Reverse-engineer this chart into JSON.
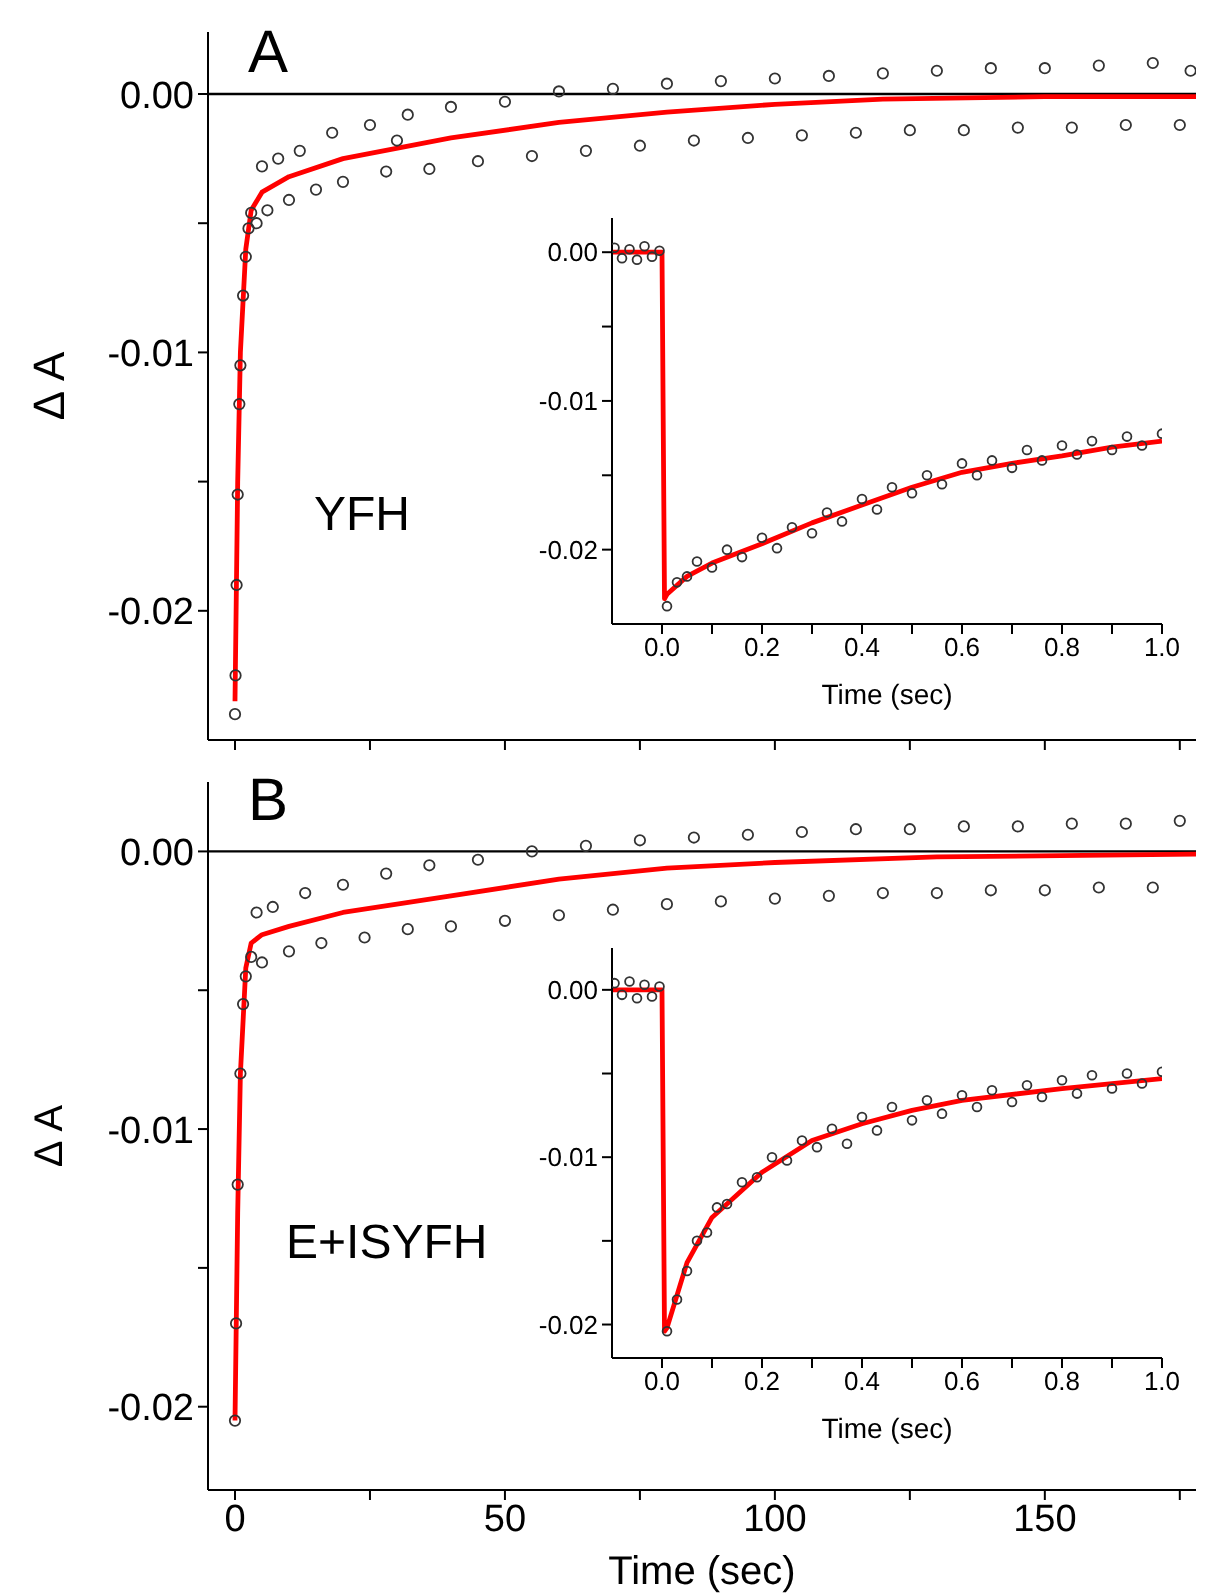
{
  "chart_data": [
    {
      "type": "scatter",
      "ylabel": "Δ A",
      "annotations": [
        "A",
        "YFH"
      ],
      "marker": "circle",
      "tick_labels": "y",
      "xlim": [
        -5,
        178
      ],
      "xticks": [
        0,
        {
          "value": 25,
          "label": null
        },
        50,
        {
          "value": 75,
          "label": null
        },
        100,
        {
          "value": 125,
          "label": null
        },
        150,
        {
          "value": 175,
          "label": null
        }
      ],
      "ylim": [
        -0.025,
        0.0024
      ],
      "yticks": [
        {
          "value": 0,
          "label": "0.00"
        },
        {
          "value": -0.005,
          "label": null
        },
        {
          "value": -0.01,
          "label": "-0.01"
        },
        {
          "value": -0.015,
          "label": null
        },
        {
          "value": -0.02,
          "label": "-0.02"
        }
      ],
      "ref_lines": [
        {
          "axis": "y",
          "value": 0
        }
      ],
      "series": [
        {
          "type": "scatter",
          "color": "#333333",
          "x": [
            0,
            0.1,
            0.3,
            0.5,
            0.8,
            1,
            1.5,
            2,
            2.5,
            3,
            4,
            5,
            6,
            8,
            10,
            12,
            15,
            18,
            20,
            25,
            28,
            30,
            32,
            36,
            40,
            45,
            50,
            55,
            60,
            65,
            70,
            75,
            80,
            85,
            90,
            95,
            100,
            105,
            110,
            115,
            120,
            125,
            130,
            135,
            140,
            145,
            150,
            155,
            160,
            165,
            170,
            175,
            177
          ],
          "values": [
            -0.024,
            -0.0225,
            -0.019,
            -0.0155,
            -0.012,
            -0.0105,
            -0.0078,
            -0.0063,
            -0.0052,
            -0.0046,
            -0.005,
            -0.0028,
            -0.0045,
            -0.0025,
            -0.0041,
            -0.0022,
            -0.0037,
            -0.0015,
            -0.0034,
            -0.0012,
            -0.003,
            -0.0018,
            -0.0008,
            -0.0029,
            -0.0005,
            -0.0026,
            -0.0003,
            -0.0024,
            0.0001,
            -0.0022,
            0.0002,
            -0.002,
            0.0004,
            -0.0018,
            0.0005,
            -0.0017,
            0.0006,
            -0.0016,
            0.0007,
            -0.0015,
            0.0008,
            -0.0014,
            0.0009,
            -0.0014,
            0.001,
            -0.0013,
            0.001,
            -0.0013,
            0.0011,
            -0.0012,
            0.0012,
            -0.0012,
            0.0009
          ]
        },
        {
          "type": "line",
          "color": "#ff0000",
          "marker": "none",
          "x": [
            0,
            0.5,
            1,
            2,
            3,
            5,
            10,
            20,
            40,
            60,
            80,
            100,
            120,
            150,
            178
          ],
          "values": [
            -0.0235,
            -0.015,
            -0.01,
            -0.006,
            -0.0045,
            -0.0038,
            -0.0032,
            -0.0025,
            -0.0017,
            -0.0011,
            -0.0007,
            -0.0004,
            -0.0002,
            -0.0001,
            -0.0001
          ]
        }
      ]
    },
    {
      "type": "scatter",
      "xlabel": "Time (sec)",
      "marker": "circle",
      "xlim": [
        -0.1,
        1.0
      ],
      "xticks": [
        {
          "value": 0,
          "label": "0.0"
        },
        {
          "value": 0.1,
          "label": null
        },
        {
          "value": 0.2,
          "label": "0.2"
        },
        {
          "value": 0.3,
          "label": null
        },
        {
          "value": 0.4,
          "label": "0.4"
        },
        {
          "value": 0.5,
          "label": null
        },
        {
          "value": 0.6,
          "label": "0.6"
        },
        {
          "value": 0.7,
          "label": null
        },
        {
          "value": 0.8,
          "label": "0.8"
        },
        {
          "value": 0.9,
          "label": null
        },
        {
          "value": 1.0,
          "label": "1.0"
        }
      ],
      "ylim": [
        -0.025,
        0.0023
      ],
      "yticks": [
        {
          "value": 0,
          "label": "0.00"
        },
        {
          "value": -0.005,
          "label": null
        },
        {
          "value": -0.01,
          "label": "-0.01"
        },
        {
          "value": -0.015,
          "label": null
        },
        {
          "value": -0.02,
          "label": "-0.02"
        }
      ],
      "series": [
        {
          "type": "scatter",
          "color": "#333333",
          "x": [
            -0.095,
            -0.08,
            -0.065,
            -0.05,
            -0.035,
            -0.02,
            -0.005,
            0.01,
            0.03,
            0.05,
            0.07,
            0.1,
            0.13,
            0.16,
            0.2,
            0.23,
            0.26,
            0.3,
            0.33,
            0.36,
            0.4,
            0.43,
            0.46,
            0.5,
            0.53,
            0.56,
            0.6,
            0.63,
            0.66,
            0.7,
            0.73,
            0.76,
            0.8,
            0.83,
            0.86,
            0.9,
            0.93,
            0.96,
            1.0
          ],
          "values": [
            0.0003,
            -0.0004,
            0.0002,
            -0.0005,
            0.0004,
            -0.0003,
            0.0001,
            -0.0238,
            -0.0222,
            -0.0218,
            -0.0208,
            -0.0212,
            -0.02,
            -0.0205,
            -0.0192,
            -0.0199,
            -0.0185,
            -0.0189,
            -0.0175,
            -0.0181,
            -0.0166,
            -0.0173,
            -0.0158,
            -0.0162,
            -0.015,
            -0.0156,
            -0.0142,
            -0.015,
            -0.014,
            -0.0145,
            -0.0133,
            -0.014,
            -0.013,
            -0.0136,
            -0.0127,
            -0.0133,
            -0.0124,
            -0.013,
            -0.0122
          ]
        },
        {
          "type": "line",
          "color": "#ff0000",
          "marker": "none",
          "x": [
            -0.1,
            0,
            0.005,
            0.01,
            0.05,
            0.1,
            0.2,
            0.3,
            0.4,
            0.5,
            0.6,
            0.7,
            0.8,
            0.9,
            1.0
          ],
          "values": [
            0,
            0,
            -0.0233,
            -0.023,
            -0.0218,
            -0.0209,
            -0.0196,
            -0.0182,
            -0.017,
            -0.0158,
            -0.0148,
            -0.0142,
            -0.0137,
            -0.0131,
            -0.0127
          ]
        }
      ]
    },
    {
      "type": "scatter",
      "ylabel": "Δ A",
      "xlabel": "Time (sec)",
      "annotations": [
        "B",
        "E+ISYFH"
      ],
      "marker": "circle",
      "xlim": [
        -5,
        178
      ],
      "xticks": [
        {
          "value": 0,
          "label": "0"
        },
        {
          "value": 25,
          "label": null
        },
        {
          "value": 50,
          "label": "50"
        },
        {
          "value": 75,
          "label": null
        },
        {
          "value": 100,
          "label": "100"
        },
        {
          "value": 125,
          "label": null
        },
        {
          "value": 150,
          "label": "150"
        },
        {
          "value": 175,
          "label": null
        }
      ],
      "ylim": [
        -0.023,
        0.0025
      ],
      "yticks": [
        {
          "value": 0,
          "label": "0.00"
        },
        {
          "value": -0.005,
          "label": null
        },
        {
          "value": -0.01,
          "label": "-0.01"
        },
        {
          "value": -0.015,
          "label": null
        },
        {
          "value": -0.02,
          "label": "-0.02"
        }
      ],
      "ref_lines": [
        {
          "axis": "y",
          "value": 0
        }
      ],
      "series": [
        {
          "type": "scatter",
          "color": "#333333",
          "x": [
            0,
            0.2,
            0.5,
            1,
            1.5,
            2,
            3,
            4,
            5,
            7,
            10,
            13,
            16,
            20,
            24,
            28,
            32,
            36,
            40,
            45,
            50,
            55,
            60,
            65,
            70,
            75,
            80,
            85,
            90,
            95,
            100,
            105,
            110,
            115,
            120,
            125,
            130,
            135,
            140,
            145,
            150,
            155,
            160,
            165,
            170,
            175
          ],
          "values": [
            -0.0205,
            -0.017,
            -0.012,
            -0.008,
            -0.0055,
            -0.0045,
            -0.0038,
            -0.0022,
            -0.004,
            -0.002,
            -0.0036,
            -0.0015,
            -0.0033,
            -0.0012,
            -0.0031,
            -0.0008,
            -0.0028,
            -0.0005,
            -0.0027,
            -0.0003,
            -0.0025,
            0,
            -0.0023,
            0.0002,
            -0.0021,
            0.0004,
            -0.0019,
            0.0005,
            -0.0018,
            0.0006,
            -0.0017,
            0.0007,
            -0.0016,
            0.0008,
            -0.0015,
            0.0008,
            -0.0015,
            0.0009,
            -0.0014,
            0.0009,
            -0.0014,
            0.001,
            -0.0013,
            0.001,
            -0.0013,
            0.0011
          ]
        },
        {
          "type": "line",
          "color": "#ff0000",
          "marker": "none",
          "x": [
            0,
            0.5,
            1,
            2,
            3,
            5,
            10,
            20,
            40,
            60,
            80,
            100,
            130,
            178
          ],
          "values": [
            -0.0205,
            -0.013,
            -0.008,
            -0.0042,
            -0.0033,
            -0.003,
            -0.0027,
            -0.0022,
            -0.0016,
            -0.001,
            -0.0006,
            -0.0004,
            -0.0002,
            -0.0001
          ]
        }
      ]
    },
    {
      "type": "scatter",
      "xlabel": "Time (sec)",
      "marker": "circle",
      "xlim": [
        -0.1,
        1.0
      ],
      "xticks": [
        {
          "value": 0,
          "label": "0.0"
        },
        {
          "value": 0.1,
          "label": null
        },
        {
          "value": 0.2,
          "label": "0.2"
        },
        {
          "value": 0.3,
          "label": null
        },
        {
          "value": 0.4,
          "label": "0.4"
        },
        {
          "value": 0.5,
          "label": null
        },
        {
          "value": 0.6,
          "label": "0.6"
        },
        {
          "value": 0.7,
          "label": null
        },
        {
          "value": 0.8,
          "label": "0.8"
        },
        {
          "value": 0.9,
          "label": null
        },
        {
          "value": 1.0,
          "label": "1.0"
        }
      ],
      "ylim": [
        -0.022,
        0.0025
      ],
      "yticks": [
        {
          "value": 0,
          "label": "0.00"
        },
        {
          "value": -0.005,
          "label": null
        },
        {
          "value": -0.01,
          "label": "-0.01"
        },
        {
          "value": -0.015,
          "label": null
        },
        {
          "value": -0.02,
          "label": "-0.02"
        }
      ],
      "series": [
        {
          "type": "scatter",
          "color": "#333333",
          "x": [
            -0.095,
            -0.08,
            -0.065,
            -0.05,
            -0.035,
            -0.02,
            -0.005,
            0.01,
            0.03,
            0.05,
            0.07,
            0.09,
            0.11,
            0.13,
            0.16,
            0.19,
            0.22,
            0.25,
            0.28,
            0.31,
            0.34,
            0.37,
            0.4,
            0.43,
            0.46,
            0.5,
            0.53,
            0.56,
            0.6,
            0.63,
            0.66,
            0.7,
            0.73,
            0.76,
            0.8,
            0.83,
            0.86,
            0.9,
            0.93,
            0.96,
            1.0
          ],
          "values": [
            0.0004,
            -0.0003,
            0.0005,
            -0.0005,
            0.0003,
            -0.0004,
            0.0002,
            -0.0204,
            -0.0185,
            -0.0168,
            -0.015,
            -0.0145,
            -0.013,
            -0.0128,
            -0.0115,
            -0.0112,
            -0.01,
            -0.0102,
            -0.009,
            -0.0094,
            -0.0083,
            -0.0092,
            -0.0076,
            -0.0084,
            -0.007,
            -0.0078,
            -0.0066,
            -0.0074,
            -0.0063,
            -0.007,
            -0.006,
            -0.0067,
            -0.0057,
            -0.0064,
            -0.0054,
            -0.0062,
            -0.0051,
            -0.0059,
            -0.005,
            -0.0056,
            -0.0049
          ]
        },
        {
          "type": "line",
          "color": "#ff0000",
          "marker": "none",
          "x": [
            -0.1,
            0,
            0.005,
            0.01,
            0.05,
            0.1,
            0.2,
            0.3,
            0.4,
            0.5,
            0.6,
            0.8,
            1.0
          ],
          "values": [
            0,
            0,
            -0.0204,
            -0.0202,
            -0.0163,
            -0.0136,
            -0.0109,
            -0.009,
            -0.008,
            -0.0072,
            -0.0066,
            -0.0059,
            -0.0053
          ]
        }
      ]
    }
  ]
}
